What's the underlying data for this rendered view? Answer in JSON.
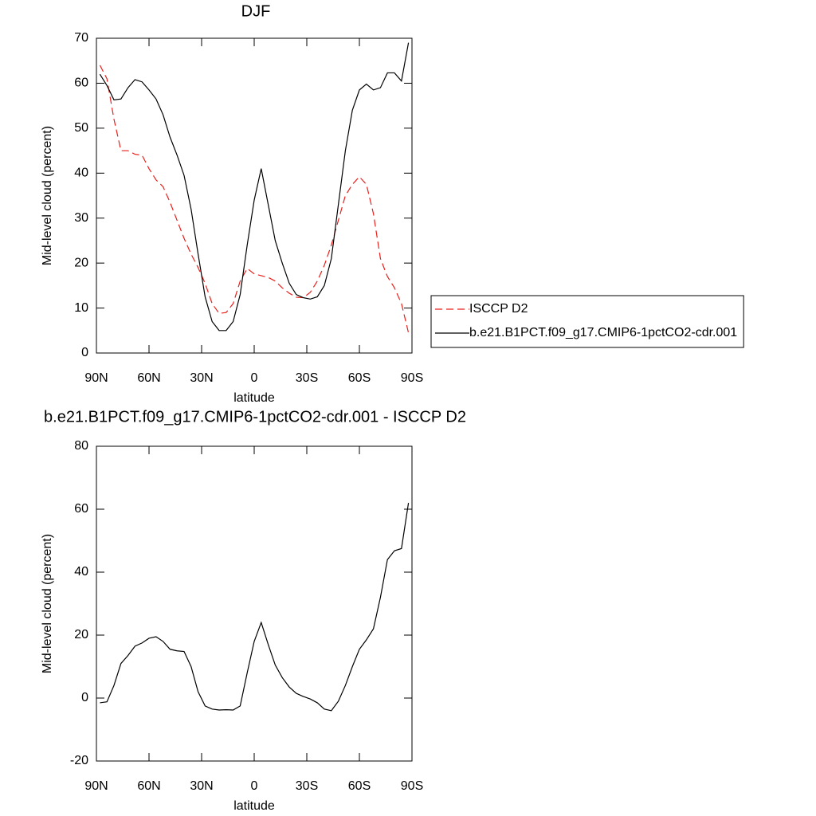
{
  "chart_data": [
    {
      "type": "line",
      "title": "DJF",
      "x_label": "latitude",
      "y_label": "Mid-level cloud (percent)",
      "x": [
        88,
        84,
        80,
        76,
        72,
        68,
        64,
        60,
        56,
        52,
        48,
        44,
        40,
        36,
        32,
        28,
        24,
        20,
        16,
        12,
        8,
        4,
        0,
        -4,
        -8,
        -12,
        -16,
        -20,
        -24,
        -28,
        -32,
        -36,
        -40,
        -44,
        -48,
        -52,
        -56,
        -60,
        -64,
        -68,
        -72,
        -76,
        -80,
        -84,
        -88
      ],
      "series": [
        {
          "name": "ISCCP D2",
          "color": "#e8201c",
          "dash": true,
          "values": [
            64,
            61,
            52,
            45,
            45,
            44.2,
            44,
            41,
            38.5,
            37,
            33.5,
            29.5,
            25.5,
            22,
            19,
            15.5,
            11,
            8.8,
            9,
            11,
            16,
            18.8,
            17.6,
            17.2,
            16.8,
            16,
            14.5,
            13.3,
            12.4,
            12.3,
            13.5,
            16,
            19.5,
            24,
            29.5,
            35,
            37.5,
            39.2,
            37.5,
            31,
            21,
            17,
            14.5,
            11,
            4.5
          ]
        },
        {
          "name": "b.e21.B1PCT.f09_g17.CMIP6-1pctCO2-cdr.001",
          "color": "#000000",
          "dash": false,
          "values": [
            62,
            59.5,
            56.3,
            56.5,
            59,
            60.8,
            60.3,
            58.5,
            56.5,
            53,
            48,
            44,
            39.5,
            32,
            22,
            12.5,
            7,
            5,
            5,
            7,
            13,
            24,
            34,
            41,
            33,
            25,
            20,
            15.5,
            13,
            12.3,
            12,
            12.5,
            15,
            21,
            33,
            45,
            54,
            58.5,
            59.8,
            58.5,
            59,
            62.3,
            62.3,
            60.5,
            69
          ]
        }
      ],
      "xlim": [
        90,
        -90
      ],
      "xticks": [
        {
          "value": 90,
          "label": "90N"
        },
        {
          "value": 60,
          "label": "60N"
        },
        {
          "value": 30,
          "label": "30N"
        },
        0,
        {
          "value": -30,
          "label": "30S"
        },
        {
          "value": -60,
          "label": "60S"
        },
        {
          "value": -90,
          "label": "90S"
        }
      ],
      "ylim": [
        0,
        70
      ],
      "yticks": [
        0,
        10,
        20,
        30,
        40,
        50,
        60,
        70
      ],
      "legend": "right"
    },
    {
      "type": "line",
      "title": "b.e21.B1PCT.f09_g17.CMIP6-1pctCO2-cdr.001 - ISCCP D2",
      "x_label": "latitude",
      "y_label": "Mid-level cloud (percent)",
      "x": [
        88,
        84,
        80,
        76,
        72,
        68,
        64,
        60,
        56,
        52,
        48,
        44,
        40,
        36,
        32,
        28,
        24,
        20,
        16,
        12,
        8,
        4,
        0,
        -4,
        -8,
        -12,
        -16,
        -20,
        -24,
        -28,
        -32,
        -36,
        -40,
        -44,
        -48,
        -52,
        -56,
        -60,
        -64,
        -68,
        -72,
        -76,
        -80,
        -84,
        -88
      ],
      "color": "#000000",
      "values": [
        -1.5,
        -1.2,
        4,
        11,
        13.5,
        16.5,
        17.5,
        19,
        19.5,
        18,
        15.5,
        15,
        14.8,
        10,
        2,
        -2.5,
        -3.5,
        -3.8,
        -3.7,
        -3.8,
        -2.5,
        8,
        18,
        24,
        17,
        10.5,
        6.5,
        3.5,
        1.5,
        0.5,
        -0.3,
        -1.5,
        -3.5,
        -4,
        -1,
        4,
        10,
        15.5,
        18.5,
        22,
        32,
        44,
        46.8,
        47.5,
        62
      ],
      "xlim": [
        90,
        -90
      ],
      "xticks": [
        {
          "value": 90,
          "label": "90N"
        },
        {
          "value": 60,
          "label": "60N"
        },
        {
          "value": 30,
          "label": "30N"
        },
        0,
        {
          "value": -30,
          "label": "30S"
        },
        {
          "value": -60,
          "label": "60S"
        },
        {
          "value": -90,
          "label": "90S"
        }
      ],
      "ylim": [
        -20,
        80
      ],
      "yticks": [
        -20,
        0,
        20,
        40,
        60,
        80
      ]
    }
  ]
}
